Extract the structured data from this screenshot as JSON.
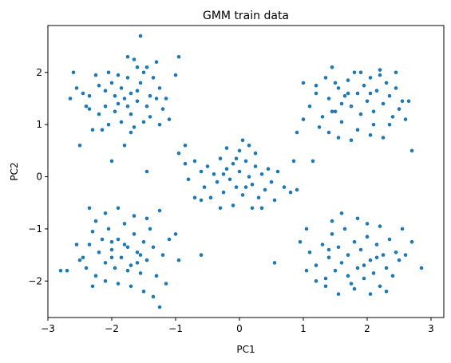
{
  "chart_data": {
    "type": "scatter",
    "title": "GMM train data",
    "xlabel": "PC1",
    "ylabel": "PC2",
    "xlim": [
      -3.0,
      3.2
    ],
    "ylim": [
      -2.7,
      2.9
    ],
    "xticks": [
      -3,
      -2,
      -1,
      0,
      1,
      2,
      3
    ],
    "yticks": [
      -2,
      -1,
      0,
      1,
      2
    ],
    "grid": false,
    "marker_color": "#1f77b4",
    "points": [
      [
        -2.6,
        2.0
      ],
      [
        -2.65,
        1.5
      ],
      [
        -2.55,
        1.7
      ],
      [
        -2.45,
        1.6
      ],
      [
        -2.35,
        1.55
      ],
      [
        -2.2,
        1.75
      ],
      [
        -2.1,
        1.65
      ],
      [
        -2.0,
        1.8
      ],
      [
        -1.95,
        1.55
      ],
      [
        -1.9,
        1.4
      ],
      [
        -1.85,
        1.7
      ],
      [
        -1.8,
        1.5
      ],
      [
        -1.75,
        1.9
      ],
      [
        -1.7,
        1.6
      ],
      [
        -1.65,
        2.25
      ],
      [
        -1.6,
        1.45
      ],
      [
        -1.55,
        1.8
      ],
      [
        -1.5,
        2.0
      ],
      [
        -1.45,
        1.35
      ],
      [
        -1.4,
        1.55
      ],
      [
        -1.35,
        1.9
      ],
      [
        -1.3,
        1.5
      ],
      [
        -1.25,
        1.7
      ],
      [
        -1.2,
        1.3
      ],
      [
        -1.15,
        1.5
      ],
      [
        -1.55,
        2.7
      ],
      [
        -1.6,
        2.1
      ],
      [
        -1.7,
        1.2
      ],
      [
        -1.85,
        1.05
      ],
      [
        -1.95,
        1.25
      ],
      [
        -2.05,
        1.0
      ],
      [
        -2.15,
        0.9
      ],
      [
        -2.2,
        1.2
      ],
      [
        -2.3,
        0.9
      ],
      [
        -2.4,
        1.35
      ],
      [
        -2.5,
        0.6
      ],
      [
        -2.0,
        0.3
      ],
      [
        -1.8,
        0.6
      ],
      [
        -1.7,
        0.85
      ],
      [
        -1.5,
        1.05
      ],
      [
        -1.4,
        1.15
      ],
      [
        -1.25,
        1.0
      ],
      [
        -1.1,
        1.1
      ],
      [
        -0.95,
        2.3
      ],
      [
        -1.0,
        1.95
      ],
      [
        -1.3,
        2.2
      ],
      [
        -1.45,
        2.1
      ],
      [
        -1.75,
        2.3
      ],
      [
        -2.05,
        2.0
      ],
      [
        -2.25,
        1.95
      ],
      [
        -1.9,
        1.95
      ],
      [
        -1.6,
        1.65
      ],
      [
        -1.75,
        1.35
      ],
      [
        -2.1,
        1.35
      ],
      [
        -2.35,
        1.3
      ],
      [
        -1.65,
        0.95
      ],
      [
        -0.95,
        0.45
      ],
      [
        -0.85,
        0.6
      ],
      [
        -0.7,
        0.3
      ],
      [
        -0.6,
        0.1
      ],
      [
        -0.55,
        -0.2
      ],
      [
        -0.5,
        0.2
      ],
      [
        -0.45,
        -0.4
      ],
      [
        -0.4,
        0.05
      ],
      [
        -0.35,
        -0.1
      ],
      [
        -0.3,
        0.35
      ],
      [
        -0.25,
        -0.3
      ],
      [
        -0.2,
        0.15
      ],
      [
        -0.15,
        -0.05
      ],
      [
        -0.1,
        0.25
      ],
      [
        -0.05,
        -0.2
      ],
      [
        0.0,
        0.1
      ],
      [
        0.05,
        -0.35
      ],
      [
        0.1,
        0.3
      ],
      [
        0.15,
        0.0
      ],
      [
        0.2,
        -0.15
      ],
      [
        0.25,
        0.2
      ],
      [
        0.3,
        -0.4
      ],
      [
        0.35,
        0.05
      ],
      [
        0.4,
        -0.25
      ],
      [
        0.45,
        0.15
      ],
      [
        0.5,
        -0.1
      ],
      [
        0.55,
        -0.45
      ],
      [
        0.6,
        0.1
      ],
      [
        0.7,
        -0.2
      ],
      [
        0.8,
        -0.3
      ],
      [
        0.9,
        -0.25
      ],
      [
        -0.2,
        0.55
      ],
      [
        0.0,
        0.5
      ],
      [
        0.15,
        0.6
      ],
      [
        0.05,
        0.7
      ],
      [
        -0.1,
        -0.55
      ],
      [
        0.2,
        -0.6
      ],
      [
        -0.3,
        -0.6
      ],
      [
        0.35,
        -0.6
      ],
      [
        -0.6,
        -0.45
      ],
      [
        -0.8,
        -0.05
      ],
      [
        -0.85,
        0.25
      ],
      [
        -1.45,
        0.1
      ],
      [
        -0.7,
        -0.4
      ],
      [
        0.25,
        0.45
      ],
      [
        -0.05,
        0.35
      ],
      [
        0.1,
        -0.2
      ],
      [
        -0.25,
        0.05
      ],
      [
        1.0,
        1.8
      ],
      [
        1.1,
        1.35
      ],
      [
        1.2,
        1.6
      ],
      [
        1.3,
        1.15
      ],
      [
        1.35,
        1.9
      ],
      [
        1.4,
        1.5
      ],
      [
        1.45,
        2.1
      ],
      [
        1.5,
        1.25
      ],
      [
        1.55,
        1.7
      ],
      [
        1.6,
        1.05
      ],
      [
        1.65,
        1.55
      ],
      [
        1.7,
        1.85
      ],
      [
        1.75,
        1.35
      ],
      [
        1.8,
        2.0
      ],
      [
        1.85,
        1.6
      ],
      [
        1.9,
        1.2
      ],
      [
        1.95,
        1.75
      ],
      [
        2.0,
        1.45
      ],
      [
        2.05,
        1.9
      ],
      [
        2.1,
        1.25
      ],
      [
        2.15,
        1.65
      ],
      [
        2.2,
        1.95
      ],
      [
        2.25,
        1.4
      ],
      [
        2.3,
        1.8
      ],
      [
        2.35,
        1.55
      ],
      [
        2.4,
        1.15
      ],
      [
        2.45,
        1.7
      ],
      [
        2.5,
        1.3
      ],
      [
        2.55,
        1.45
      ],
      [
        2.65,
        1.45
      ],
      [
        2.7,
        0.5
      ],
      [
        1.15,
        0.3
      ],
      [
        1.25,
        0.95
      ],
      [
        1.4,
        0.85
      ],
      [
        1.55,
        0.75
      ],
      [
        1.75,
        0.7
      ],
      [
        2.05,
        0.8
      ],
      [
        2.25,
        0.75
      ],
      [
        2.35,
        1.0
      ],
      [
        1.2,
        1.75
      ],
      [
        1.5,
        1.8
      ],
      [
        1.9,
        2.0
      ],
      [
        2.2,
        2.05
      ],
      [
        2.45,
        2.0
      ],
      [
        1.45,
        1.25
      ],
      [
        1.7,
        1.6
      ],
      [
        2.05,
        1.6
      ],
      [
        1.6,
        1.4
      ],
      [
        0.9,
        0.85
      ],
      [
        0.85,
        0.3
      ],
      [
        1.0,
        1.1
      ],
      [
        2.6,
        1.1
      ],
      [
        1.85,
        0.9
      ],
      [
        2.1,
        1.0
      ],
      [
        -2.7,
        -1.8
      ],
      [
        -2.55,
        -1.3
      ],
      [
        -2.5,
        -1.6
      ],
      [
        -2.4,
        -1.75
      ],
      [
        -2.35,
        -1.3
      ],
      [
        -2.3,
        -1.05
      ],
      [
        -2.2,
        -1.45
      ],
      [
        -2.15,
        -1.2
      ],
      [
        -2.1,
        -1.65
      ],
      [
        -2.05,
        -1.0
      ],
      [
        -2.0,
        -1.4
      ],
      [
        -1.95,
        -1.75
      ],
      [
        -1.9,
        -1.2
      ],
      [
        -1.85,
        -1.55
      ],
      [
        -1.8,
        -0.9
      ],
      [
        -1.75,
        -1.35
      ],
      [
        -1.7,
        -1.7
      ],
      [
        -1.65,
        -1.1
      ],
      [
        -1.6,
        -1.45
      ],
      [
        -1.55,
        -1.85
      ],
      [
        -1.5,
        -1.25
      ],
      [
        -1.45,
        -1.6
      ],
      [
        -1.4,
        -1.0
      ],
      [
        -1.35,
        -1.35
      ],
      [
        -1.3,
        -1.9
      ],
      [
        -1.2,
        -1.5
      ],
      [
        -1.1,
        -1.2
      ],
      [
        -2.35,
        -0.6
      ],
      [
        -2.25,
        -0.85
      ],
      [
        -2.1,
        -0.7
      ],
      [
        -1.9,
        -0.6
      ],
      [
        -1.65,
        -0.75
      ],
      [
        -1.45,
        -0.8
      ],
      [
        -1.25,
        -0.65
      ],
      [
        -2.3,
        -2.1
      ],
      [
        -2.1,
        -2.0
      ],
      [
        -1.9,
        -2.05
      ],
      [
        -1.7,
        -2.1
      ],
      [
        -1.5,
        -2.2
      ],
      [
        -1.35,
        -2.3
      ],
      [
        -1.25,
        -2.5
      ],
      [
        -1.15,
        -2.05
      ],
      [
        -2.8,
        -1.8
      ],
      [
        -2.0,
        -1.55
      ],
      [
        -1.8,
        -1.3
      ],
      [
        -1.6,
        -1.65
      ],
      [
        -2.25,
        -1.9
      ],
      [
        -2.45,
        -1.55
      ],
      [
        -1.0,
        -1.1
      ],
      [
        -0.95,
        -1.6
      ],
      [
        -0.6,
        -1.5
      ],
      [
        -2.0,
        -1.25
      ],
      [
        -1.75,
        -1.8
      ],
      [
        -1.55,
        -1.5
      ],
      [
        0.95,
        -1.25
      ],
      [
        1.05,
        -1.8
      ],
      [
        1.1,
        -1.45
      ],
      [
        1.2,
        -1.7
      ],
      [
        1.3,
        -1.3
      ],
      [
        1.35,
        -1.95
      ],
      [
        1.4,
        -1.55
      ],
      [
        1.45,
        -1.1
      ],
      [
        1.5,
        -1.8
      ],
      [
        1.55,
        -1.35
      ],
      [
        1.6,
        -1.65
      ],
      [
        1.65,
        -1.0
      ],
      [
        1.7,
        -1.5
      ],
      [
        1.75,
        -2.05
      ],
      [
        1.8,
        -1.25
      ],
      [
        1.85,
        -1.75
      ],
      [
        1.9,
        -1.4
      ],
      [
        1.95,
        -1.95
      ],
      [
        2.0,
        -1.15
      ],
      [
        2.05,
        -1.6
      ],
      [
        2.1,
        -1.85
      ],
      [
        2.15,
        -1.3
      ],
      [
        2.2,
        -2.1
      ],
      [
        2.25,
        -1.5
      ],
      [
        2.3,
        -1.75
      ],
      [
        2.35,
        -1.2
      ],
      [
        2.4,
        -1.9
      ],
      [
        2.45,
        -1.45
      ],
      [
        2.5,
        -1.6
      ],
      [
        2.6,
        -1.5
      ],
      [
        2.7,
        -1.25
      ],
      [
        2.85,
        -1.75
      ],
      [
        1.2,
        -2.0
      ],
      [
        1.35,
        -2.1
      ],
      [
        1.55,
        -2.25
      ],
      [
        1.8,
        -2.15
      ],
      [
        2.05,
        -2.25
      ],
      [
        2.3,
        -2.2
      ],
      [
        1.6,
        -0.7
      ],
      [
        1.85,
        -0.8
      ],
      [
        2.0,
        -0.9
      ],
      [
        2.2,
        -0.95
      ],
      [
        1.45,
        -0.85
      ],
      [
        2.55,
        -1.0
      ],
      [
        1.7,
        -1.9
      ],
      [
        1.95,
        -1.7
      ],
      [
        2.15,
        -1.55
      ],
      [
        1.4,
        -1.4
      ],
      [
        0.55,
        -1.65
      ],
      [
        1.05,
        -1.0
      ]
    ]
  }
}
